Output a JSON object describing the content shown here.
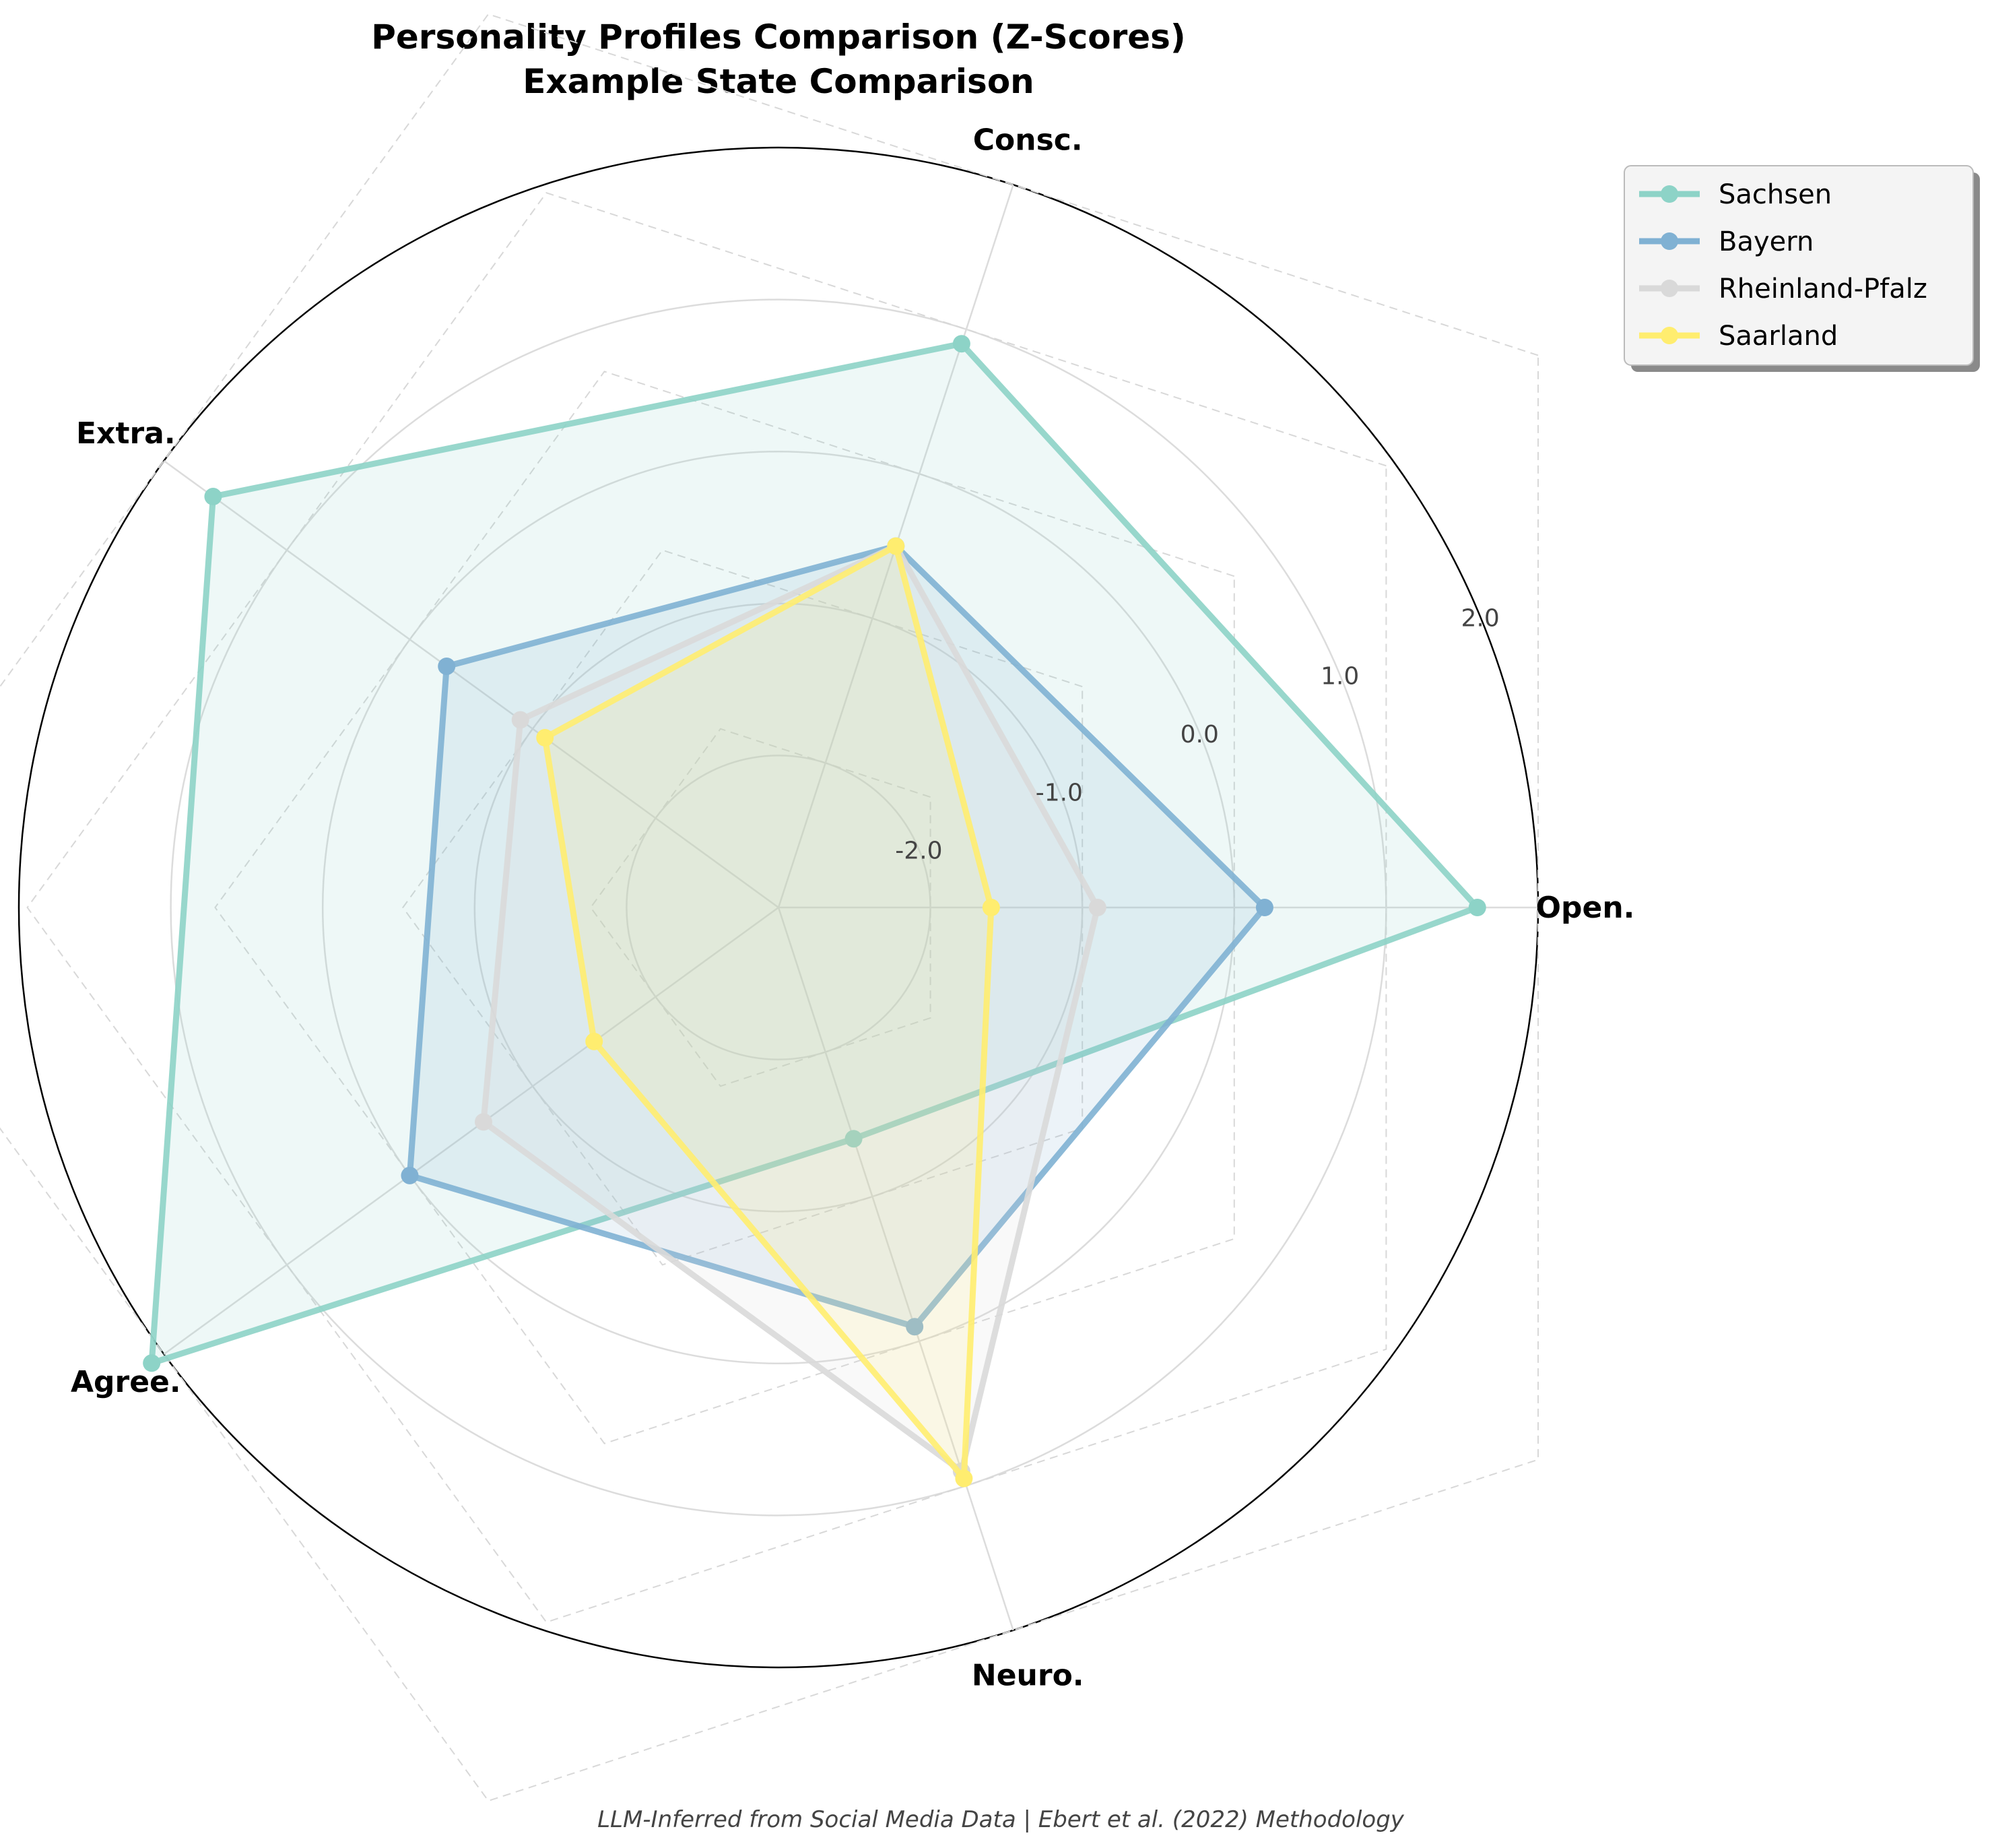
{
  "chart_data": {
    "type": "radar",
    "title": "Personality Profiles Comparison (Z-Scores)",
    "subtitle": "Example State Comparison",
    "footnote": "LLM-Inferred from Social Media Data | Ebert et al. (2022) Methodology",
    "categories": [
      "Open.",
      "Consc.",
      "Extra.",
      "Agree.",
      "Neuro."
    ],
    "rlim": [
      -3,
      2
    ],
    "ticks": [
      -2.0,
      -1.0,
      0.0,
      1.0,
      2.0
    ],
    "tick_labels": [
      "-2.0",
      "-1.0",
      "0.0",
      "1.0",
      "2.0"
    ],
    "grid": true,
    "legend_position": "top-right",
    "series": [
      {
        "name": "Sachsen",
        "values": [
          1.6,
          0.9,
          1.6,
          2.1,
          -1.4
        ],
        "color": "#8dd3c7"
      },
      {
        "name": "Bayern",
        "values": [
          0.2,
          -0.5,
          -0.3,
          0.0,
          -0.1
        ],
        "color": "#80b1d3"
      },
      {
        "name": "Rheinland-Pfalz",
        "values": [
          -0.9,
          -0.5,
          -0.9,
          -0.6,
          0.9
        ],
        "color": "#d9d9d9"
      },
      {
        "name": "Saarland",
        "values": [
          -1.6,
          -0.5,
          -1.1,
          -1.5,
          0.95
        ],
        "color": "#ffed6f"
      }
    ]
  }
}
